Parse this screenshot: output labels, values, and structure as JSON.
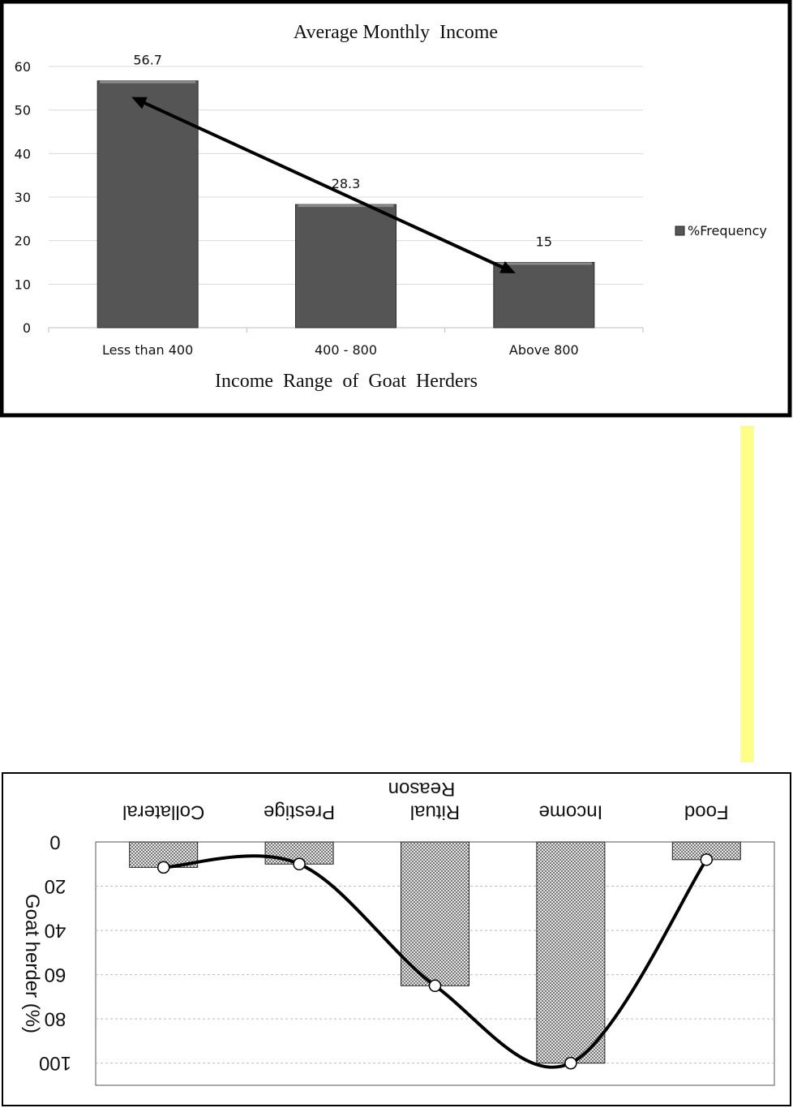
{
  "chart_data": [
    {
      "type": "bar",
      "title": "Average Monthly  Income",
      "xlabel": "Income  Range  of  Goat  Herders",
      "ylabel": "",
      "categories": [
        "Less than 400",
        "400 - 800",
        "Above 800"
      ],
      "series": [
        {
          "name": "%Frequency",
          "values": [
            56.7,
            28.3,
            15
          ],
          "labels": [
            "56.7",
            "28.3",
            "15"
          ]
        }
      ],
      "ylim": [
        0,
        60
      ],
      "yticks": [
        0,
        10,
        20,
        30,
        40,
        50,
        60
      ],
      "grid": true,
      "legend": "right",
      "annotations": [
        {
          "type": "double-arrow",
          "from": [
            "Less than 400",
            53
          ],
          "to": [
            "Above 800",
            12.5
          ]
        }
      ],
      "colors": {
        "bar": "#555555",
        "arrow": "#000000",
        "grid": "#d9d9d9"
      }
    },
    {
      "type": "bar",
      "orientation": "mirrored-upside-down",
      "title": "",
      "xlabel": "Reason",
      "ylabel": "Goat herder (%)",
      "categories": [
        "Food",
        "Income",
        "Ritual",
        "Prestige",
        "Collateral"
      ],
      "series": [
        {
          "values": [
            8,
            100,
            65,
            10,
            11.5
          ]
        }
      ],
      "line": {
        "values": [
          8,
          100,
          65,
          10,
          11.5
        ],
        "smooth": true
      },
      "ylim": [
        0,
        110
      ],
      "yticks": [
        0,
        20,
        40,
        60,
        80,
        100
      ],
      "grid": true,
      "colors": {
        "bar": "#aaaaaa",
        "line": "#000000",
        "grid": "#bbbbbb"
      }
    }
  ]
}
